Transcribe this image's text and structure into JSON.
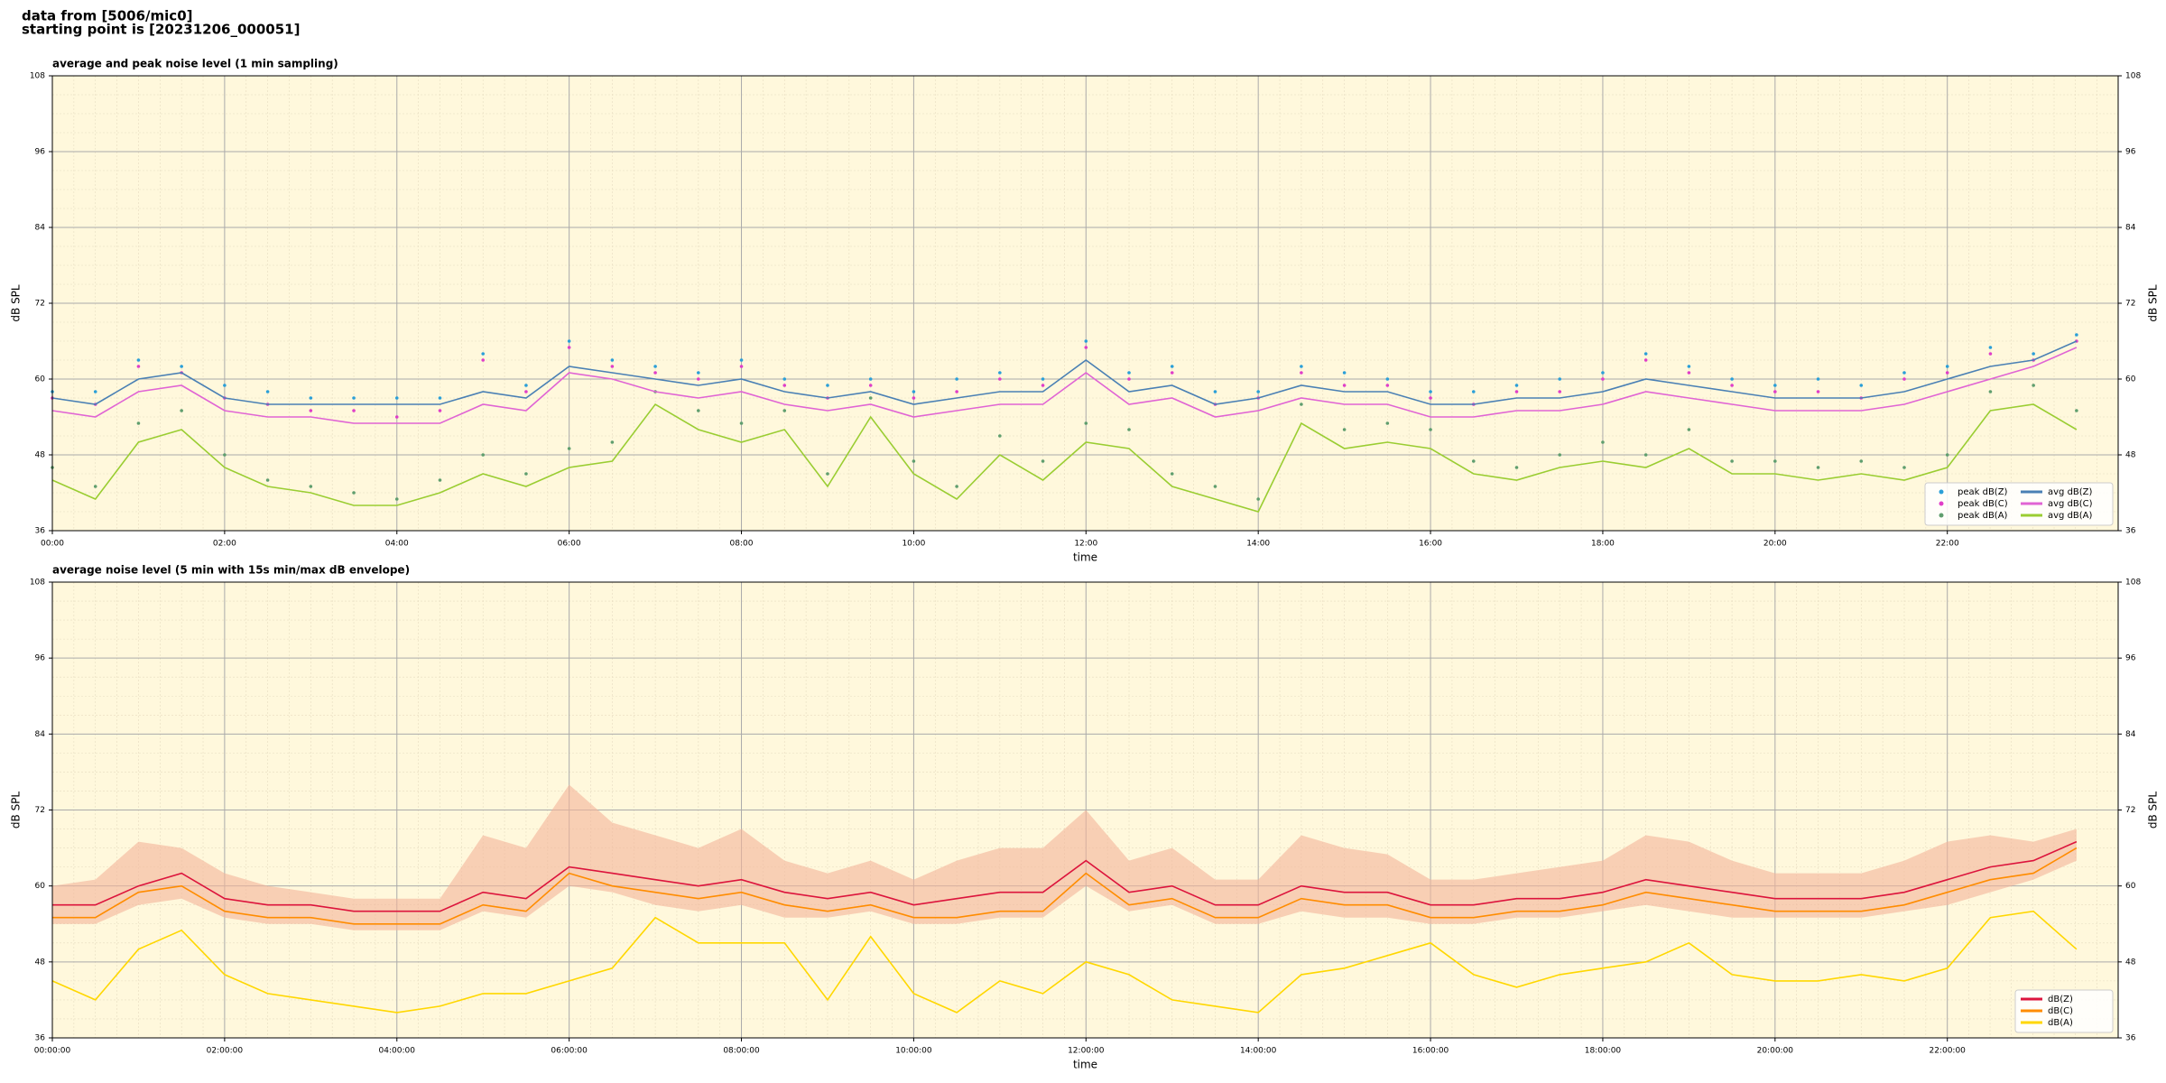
{
  "header": [
    "data from [5006/mic0]",
    "starting point is [20231206_000051]"
  ],
  "chart_data": [
    {
      "type": "line",
      "title": "average and peak noise level (1 min sampling)",
      "xlabel": "time",
      "ylabel": "dB SPL",
      "x": [
        "00:00",
        "00:30",
        "01:00",
        "01:30",
        "02:00",
        "02:30",
        "03:00",
        "03:30",
        "04:00",
        "04:30",
        "05:00",
        "05:30",
        "06:00",
        "06:30",
        "07:00",
        "07:30",
        "08:00",
        "08:30",
        "09:00",
        "09:30",
        "10:00",
        "10:30",
        "11:00",
        "11:30",
        "12:00",
        "12:30",
        "13:00",
        "13:30",
        "14:00",
        "14:30",
        "15:00",
        "15:30",
        "16:00",
        "16:30",
        "17:00",
        "17:30",
        "18:00",
        "18:30",
        "19:00",
        "19:30",
        "20:00",
        "20:30",
        "21:00",
        "21:30",
        "22:00",
        "22:30",
        "23:00",
        "23:30"
      ],
      "xlim": [
        "00:00",
        "23:59"
      ],
      "xticks": [
        "00:00",
        "02:00",
        "04:00",
        "06:00",
        "08:00",
        "10:00",
        "12:00",
        "14:00",
        "16:00",
        "18:00",
        "20:00",
        "22:00"
      ],
      "ylim": [
        36,
        108
      ],
      "yticks": [
        36,
        48,
        60,
        72,
        84,
        96,
        108
      ],
      "grid": true,
      "legend": "lower right",
      "series": [
        {
          "name": "peak dB(Z)",
          "type": "scatter",
          "color": "#2a9fd8",
          "values": [
            58,
            58,
            63,
            62,
            59,
            58,
            57,
            57,
            57,
            57,
            64,
            59,
            66,
            63,
            62,
            61,
            63,
            60,
            59,
            60,
            58,
            60,
            61,
            60,
            66,
            61,
            62,
            58,
            58,
            62,
            61,
            60,
            58,
            58,
            59,
            60,
            61,
            64,
            62,
            60,
            59,
            60,
            59,
            61,
            62,
            65,
            64,
            67
          ]
        },
        {
          "name": "peak dB(C)",
          "type": "scatter",
          "color": "#e03ec8",
          "values": [
            57,
            56,
            62,
            61,
            57,
            56,
            55,
            55,
            54,
            55,
            63,
            58,
            65,
            62,
            61,
            60,
            62,
            59,
            57,
            59,
            57,
            58,
            60,
            59,
            65,
            60,
            61,
            56,
            57,
            61,
            59,
            59,
            57,
            56,
            58,
            58,
            60,
            63,
            61,
            59,
            58,
            58,
            57,
            60,
            61,
            64,
            63,
            66
          ]
        },
        {
          "name": "peak dB(A)",
          "type": "scatter",
          "color": "#5f9e6e",
          "values": [
            46,
            43,
            53,
            55,
            48,
            44,
            43,
            42,
            41,
            44,
            48,
            45,
            49,
            50,
            58,
            55,
            53,
            55,
            45,
            57,
            47,
            43,
            51,
            47,
            53,
            52,
            45,
            43,
            41,
            56,
            52,
            53,
            52,
            47,
            46,
            48,
            50,
            48,
            52,
            47,
            47,
            46,
            47,
            46,
            48,
            58,
            59,
            55
          ]
        },
        {
          "name": "avg dB(Z)",
          "type": "line",
          "color": "#4a80b4",
          "values": [
            57,
            56,
            60,
            61,
            57,
            56,
            56,
            56,
            56,
            56,
            58,
            57,
            62,
            61,
            60,
            59,
            60,
            58,
            57,
            58,
            56,
            57,
            58,
            58,
            63,
            58,
            59,
            56,
            57,
            59,
            58,
            58,
            56,
            56,
            57,
            57,
            58,
            60,
            59,
            58,
            57,
            57,
            57,
            58,
            60,
            62,
            63,
            66
          ]
        },
        {
          "name": "avg dB(C)",
          "type": "line",
          "color": "#e064d4",
          "values": [
            55,
            54,
            58,
            59,
            55,
            54,
            54,
            53,
            53,
            53,
            56,
            55,
            61,
            60,
            58,
            57,
            58,
            56,
            55,
            56,
            54,
            55,
            56,
            56,
            61,
            56,
            57,
            54,
            55,
            57,
            56,
            56,
            54,
            54,
            55,
            55,
            56,
            58,
            57,
            56,
            55,
            55,
            55,
            56,
            58,
            60,
            62,
            65
          ]
        },
        {
          "name": "avg dB(A)",
          "type": "line",
          "color": "#9acd32",
          "values": [
            44,
            41,
            50,
            52,
            46,
            43,
            42,
            40,
            40,
            42,
            45,
            43,
            46,
            47,
            56,
            52,
            50,
            52,
            43,
            54,
            45,
            41,
            48,
            44,
            50,
            49,
            43,
            41,
            39,
            53,
            49,
            50,
            49,
            45,
            44,
            46,
            47,
            46,
            49,
            45,
            45,
            44,
            45,
            44,
            46,
            55,
            56,
            52
          ]
        }
      ]
    },
    {
      "type": "line",
      "title": "average noise level (5 min with 15s min/max dB envelope)",
      "xlabel": "time",
      "ylabel": "dB SPL",
      "x": [
        "00:00:00",
        "00:30:00",
        "01:00:00",
        "01:30:00",
        "02:00:00",
        "02:30:00",
        "03:00:00",
        "03:30:00",
        "04:00:00",
        "04:30:00",
        "05:00:00",
        "05:30:00",
        "06:00:00",
        "06:30:00",
        "07:00:00",
        "07:30:00",
        "08:00:00",
        "08:30:00",
        "09:00:00",
        "09:30:00",
        "10:00:00",
        "10:30:00",
        "11:00:00",
        "11:30:00",
        "12:00:00",
        "12:30:00",
        "13:00:00",
        "13:30:00",
        "14:00:00",
        "14:30:00",
        "15:00:00",
        "15:30:00",
        "16:00:00",
        "16:30:00",
        "17:00:00",
        "17:30:00",
        "18:00:00",
        "18:30:00",
        "19:00:00",
        "19:30:00",
        "20:00:00",
        "20:30:00",
        "21:00:00",
        "21:30:00",
        "22:00:00",
        "22:30:00",
        "23:00:00",
        "23:30:00"
      ],
      "xlim": [
        "00:00:00",
        "23:59:00"
      ],
      "xticks": [
        "00:00:00",
        "02:00:00",
        "04:00:00",
        "06:00:00",
        "08:00:00",
        "10:00:00",
        "12:00:00",
        "14:00:00",
        "16:00:00",
        "18:00:00",
        "20:00:00",
        "22:00:00"
      ],
      "ylim": [
        36,
        108
      ],
      "yticks": [
        36,
        48,
        60,
        72,
        84,
        96,
        108
      ],
      "grid": true,
      "legend": "lower right",
      "envelope": {
        "color": "#f4b49a",
        "upper": [
          60,
          61,
          67,
          66,
          62,
          60,
          59,
          58,
          58,
          58,
          68,
          66,
          76,
          70,
          68,
          66,
          69,
          64,
          62,
          64,
          61,
          64,
          66,
          66,
          72,
          64,
          66,
          61,
          61,
          68,
          66,
          65,
          61,
          61,
          62,
          63,
          64,
          68,
          67,
          64,
          62,
          62,
          62,
          64,
          67,
          68,
          67,
          69
        ],
        "lower": [
          54,
          54,
          57,
          58,
          55,
          54,
          54,
          53,
          53,
          53,
          56,
          55,
          60,
          59,
          57,
          56,
          57,
          55,
          55,
          56,
          54,
          54,
          55,
          55,
          60,
          56,
          57,
          54,
          54,
          56,
          55,
          55,
          54,
          54,
          55,
          55,
          56,
          57,
          56,
          55,
          55,
          55,
          55,
          56,
          57,
          59,
          61,
          64
        ]
      },
      "series": [
        {
          "name": "dB(Z)",
          "type": "line",
          "color": "#dc143c",
          "values": [
            57,
            57,
            60,
            62,
            58,
            57,
            57,
            56,
            56,
            56,
            59,
            58,
            63,
            62,
            61,
            60,
            61,
            59,
            58,
            59,
            57,
            58,
            59,
            59,
            64,
            59,
            60,
            57,
            57,
            60,
            59,
            59,
            57,
            57,
            58,
            58,
            59,
            61,
            60,
            59,
            58,
            58,
            58,
            59,
            61,
            63,
            64,
            67
          ]
        },
        {
          "name": "dB(C)",
          "type": "line",
          "color": "#ff8c00",
          "values": [
            55,
            55,
            59,
            60,
            56,
            55,
            55,
            54,
            54,
            54,
            57,
            56,
            62,
            60,
            59,
            58,
            59,
            57,
            56,
            57,
            55,
            55,
            56,
            56,
            62,
            57,
            58,
            55,
            55,
            58,
            57,
            57,
            55,
            55,
            56,
            56,
            57,
            59,
            58,
            57,
            56,
            56,
            56,
            57,
            59,
            61,
            62,
            66
          ]
        },
        {
          "name": "dB(A)",
          "type": "line",
          "color": "#ffd700",
          "values": [
            45,
            42,
            50,
            53,
            46,
            43,
            42,
            41,
            40,
            41,
            43,
            43,
            45,
            47,
            55,
            51,
            51,
            51,
            42,
            52,
            43,
            40,
            45,
            43,
            48,
            46,
            42,
            41,
            40,
            46,
            47,
            49,
            51,
            46,
            44,
            46,
            47,
            48,
            51,
            46,
            45,
            45,
            46,
            45,
            47,
            55,
            56,
            50
          ]
        }
      ]
    }
  ]
}
